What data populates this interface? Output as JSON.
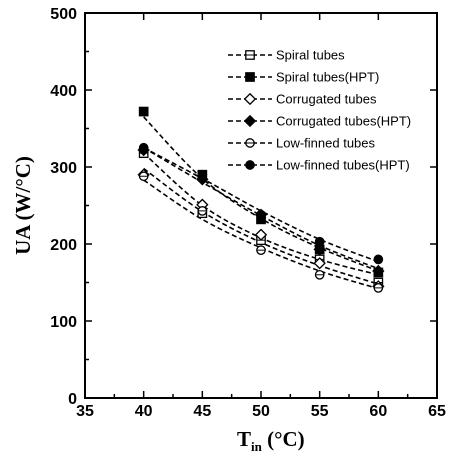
{
  "chart_data": {
    "type": "scatter",
    "xlabel": "T",
    "xlabel_sub": "in",
    "xlabel_unit": "(°C)",
    "ylabel": "UA (W/°C)",
    "xlim": [
      35,
      65
    ],
    "ylim": [
      0,
      500
    ],
    "xticks": [
      35,
      40,
      45,
      50,
      55,
      60,
      65
    ],
    "yticks": [
      0,
      100,
      200,
      300,
      400,
      500
    ],
    "grid": false,
    "legend_position": "top-right",
    "x": [
      40,
      45,
      50,
      55,
      60
    ],
    "series": [
      {
        "name": "Spiral tubes",
        "marker": "square-open",
        "values": [
          318,
          240,
          205,
          180,
          150
        ],
        "fit": [
          318,
          250,
          208,
          180,
          160
        ]
      },
      {
        "name": "Spiral tubes(HPT)",
        "marker": "square-filled",
        "values": [
          372,
          290,
          232,
          193,
          163
        ],
        "fit": [
          365,
          285,
          233,
          195,
          165
        ]
      },
      {
        "name": "Corrugated tubes",
        "marker": "diamond-open",
        "values": [
          290,
          251,
          212,
          175,
          145
        ],
        "fit": [
          298,
          242,
          202,
          172,
          148
        ]
      },
      {
        "name": "Corrugated tubes(HPT)",
        "marker": "diamond-filled",
        "values": [
          322,
          284,
          238,
          193,
          165
        ],
        "fit": [
          325,
          280,
          237,
          198,
          168
        ]
      },
      {
        "name": "Low-finned tubes",
        "marker": "circle-open",
        "values": [
          288,
          243,
          192,
          160,
          143
        ],
        "fit": [
          283,
          232,
          195,
          165,
          142
        ]
      },
      {
        "name": "Low-finned tubes(HPT)",
        "marker": "circle-filled",
        "values": [
          325,
          290,
          238,
          203,
          180
        ],
        "fit": [
          325,
          285,
          243,
          206,
          177
        ]
      }
    ]
  }
}
